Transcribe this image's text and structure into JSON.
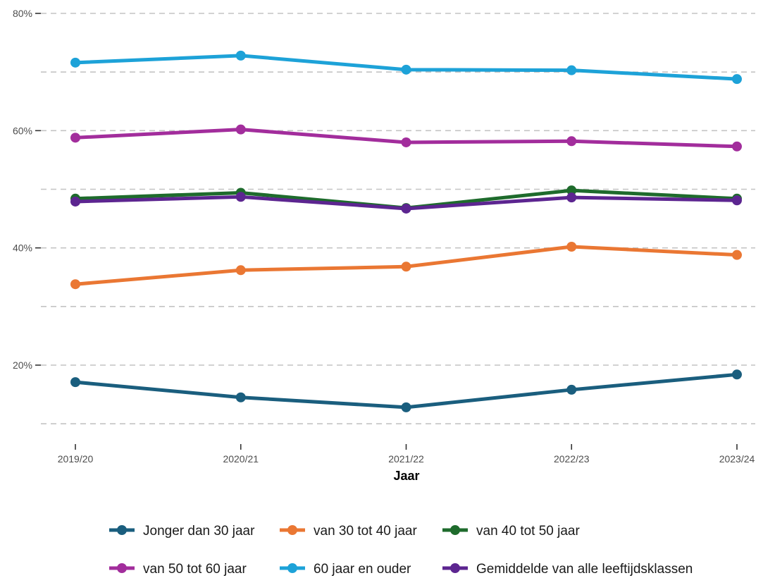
{
  "chart_data": {
    "type": "line",
    "title": "",
    "xlabel": "Jaar",
    "ylabel": "",
    "categories": [
      "2019/20",
      "2020/21",
      "2021/22",
      "2022/23",
      "2023/24"
    ],
    "ylim": [
      7,
      80
    ],
    "yticks": [
      20,
      40,
      60,
      80
    ],
    "ytick_labels": [
      "20%",
      "40%",
      "60%",
      "80%"
    ],
    "minor_gridlines": [
      10,
      30,
      50,
      70
    ],
    "grid": "horizontal-dashed",
    "legend_position": "bottom",
    "series": [
      {
        "name": "Jonger dan 30 jaar",
        "color": "#1a5e7e",
        "values": [
          17.1,
          14.5,
          12.8,
          15.8,
          18.4
        ]
      },
      {
        "name": "van 30 tot 40 jaar",
        "color": "#ea7733",
        "values": [
          33.8,
          36.2,
          36.8,
          40.2,
          38.8
        ]
      },
      {
        "name": "van 40 tot 50 jaar",
        "color": "#1e6b2c",
        "values": [
          48.4,
          49.4,
          46.8,
          49.8,
          48.4
        ]
      },
      {
        "name": "van 50 tot 60 jaar",
        "color": "#a22d9c",
        "values": [
          58.8,
          60.2,
          58.0,
          58.2,
          57.3
        ]
      },
      {
        "name": "60 jaar en ouder",
        "color": "#1da2d8",
        "values": [
          71.6,
          72.8,
          70.4,
          70.3,
          68.8
        ]
      },
      {
        "name": "Gemiddelde van alle leeftijdsklassen",
        "color": "#5c2590",
        "values": [
          47.9,
          48.7,
          46.7,
          48.6,
          48.1
        ]
      }
    ]
  }
}
